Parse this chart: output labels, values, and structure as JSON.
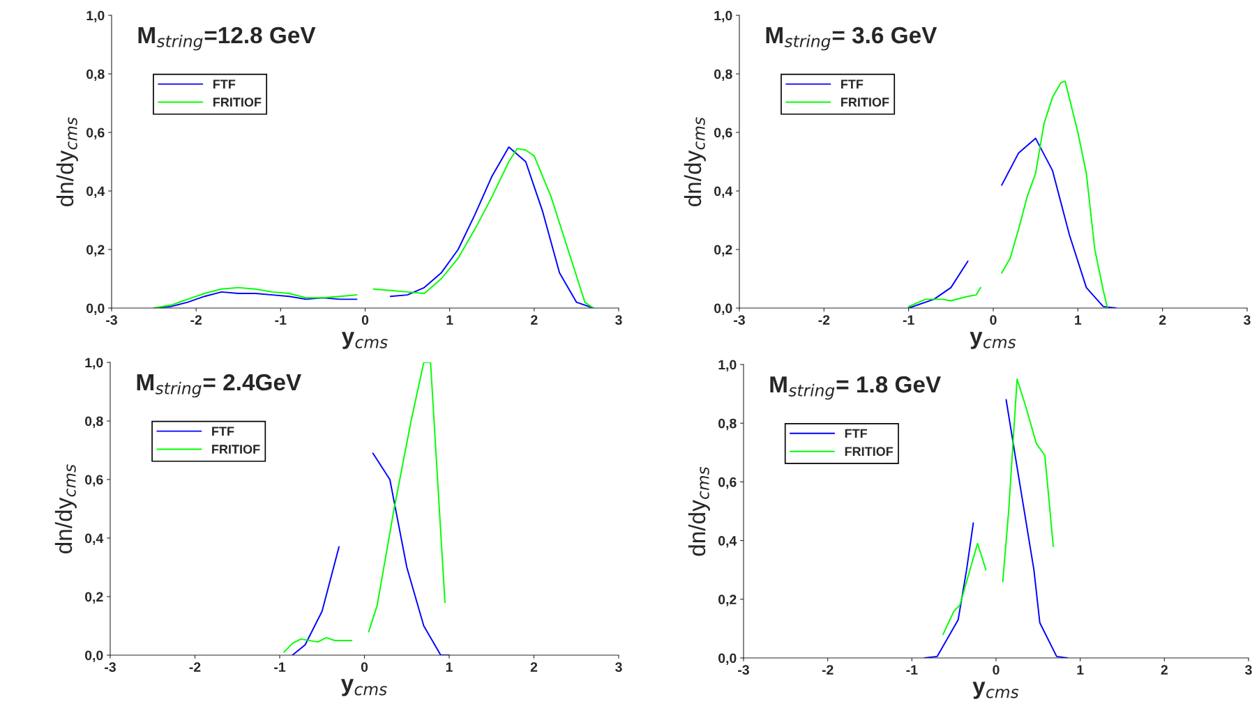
{
  "chart_data": [
    {
      "type": "line",
      "title": "M$_{string}$=12.8 GeV",
      "xlabel": "y$_{cms}$",
      "ylabel": "dn/dy$_{cms}$",
      "xlim": [
        -3,
        3
      ],
      "ylim": [
        0,
        1
      ],
      "xticks": [
        -3,
        -2,
        -1,
        0,
        1,
        2,
        3
      ],
      "yticks": [
        {
          "value": 0,
          "label": "0,0"
        },
        {
          "value": 0.2,
          "label": "0,2"
        },
        {
          "value": 0.4,
          "label": "0,4"
        },
        {
          "value": 0.6,
          "label": "0,6"
        },
        {
          "value": 0.8,
          "label": "0,8"
        },
        {
          "value": 1,
          "label": "1,0"
        }
      ],
      "grid": false,
      "legend": "top left",
      "series": [
        {
          "name": "FTF",
          "color": "#0000ff",
          "x": [
            -2.5,
            -2.3,
            -2.1,
            -1.9,
            -1.7,
            -1.5,
            -1.3,
            -1.1,
            -0.9,
            -0.7,
            -0.5,
            -0.3,
            -0.1,
            0.1,
            0.3,
            0.5,
            0.7,
            0.9,
            1.1,
            1.3,
            1.5,
            1.7,
            1.9,
            2.1,
            2.3,
            2.5,
            2.7
          ],
          "values": [
            0,
            0.005,
            0.02,
            0.04,
            0.055,
            0.05,
            0.05,
            0.045,
            0.04,
            0.03,
            0.035,
            0.03,
            0.03,
            null,
            0.04,
            0.045,
            0.07,
            0.12,
            0.2,
            0.32,
            0.45,
            0.55,
            0.5,
            0.33,
            0.12,
            0.02,
            0
          ]
        },
        {
          "name": "FRITIOF",
          "color": "#00ff00",
          "x": [
            -2.5,
            -2.3,
            -2.1,
            -1.9,
            -1.7,
            -1.5,
            -1.3,
            -1.1,
            -0.9,
            -0.7,
            -0.5,
            -0.3,
            -0.1,
            0,
            0.1,
            0.3,
            0.5,
            0.7,
            0.9,
            1.1,
            1.3,
            1.5,
            1.7,
            1.8,
            1.9,
            2.0,
            2.2,
            2.4,
            2.6,
            2.7
          ],
          "values": [
            0,
            0.01,
            0.03,
            0.05,
            0.065,
            0.07,
            0.065,
            0.055,
            0.05,
            0.035,
            0.035,
            0.04,
            0.045,
            null,
            0.065,
            0.06,
            0.055,
            0.05,
            0.1,
            0.17,
            0.27,
            0.38,
            0.5,
            0.545,
            0.54,
            0.52,
            0.38,
            0.2,
            0.02,
            0
          ]
        }
      ]
    },
    {
      "type": "line",
      "title": "M$_{string}$= 3.6 GeV",
      "xlabel": "y$_{cms}$",
      "ylabel": "dn/dy$_{cms}$",
      "xlim": [
        -3,
        3
      ],
      "ylim": [
        0,
        1
      ],
      "xticks": [
        -3,
        -2,
        -1,
        0,
        1,
        2,
        3
      ],
      "yticks": [
        {
          "value": 0,
          "label": "0,0"
        },
        {
          "value": 0.2,
          "label": "0,2"
        },
        {
          "value": 0.4,
          "label": "0,4"
        },
        {
          "value": 0.6,
          "label": "0,6"
        },
        {
          "value": 0.8,
          "label": "0,8"
        },
        {
          "value": 1,
          "label": "1,0"
        }
      ],
      "grid": false,
      "legend": "top left",
      "series": [
        {
          "name": "FTF",
          "color": "#0000ff",
          "x": [
            -1.0,
            -0.7,
            -0.5,
            -0.3,
            0,
            0.1,
            0.3,
            0.5,
            0.7,
            0.9,
            1.1,
            1.3,
            1.45
          ],
          "values": [
            0,
            0.03,
            0.07,
            0.16,
            null,
            0.42,
            0.53,
            0.58,
            0.47,
            0.25,
            0.07,
            0.005,
            0
          ]
        },
        {
          "name": "FRITIOF",
          "color": "#00ff00",
          "x": [
            -1.0,
            -0.8,
            -0.6,
            -0.5,
            -0.3,
            -0.2,
            -0.15,
            0,
            0.1,
            0.2,
            0.3,
            0.4,
            0.5,
            0.6,
            0.7,
            0.8,
            0.85,
            1.0,
            1.1,
            1.2,
            1.3,
            1.35
          ],
          "values": [
            0.005,
            0.03,
            0.03,
            0.025,
            0.04,
            0.045,
            0.07,
            null,
            0.12,
            0.17,
            0.27,
            0.38,
            0.46,
            0.63,
            0.72,
            0.77,
            0.775,
            0.6,
            0.46,
            0.2,
            0.06,
            0
          ]
        }
      ]
    },
    {
      "type": "line",
      "title": "M$_{string}$= 2.4GeV",
      "xlabel": "y$_{cms}$",
      "ylabel": "dn/dy$_{cms}$",
      "xlim": [
        -3,
        3
      ],
      "ylim": [
        0,
        1
      ],
      "xticks": [
        -3,
        -2,
        -1,
        0,
        1,
        2,
        3
      ],
      "yticks": [
        {
          "value": 0,
          "label": "0,0"
        },
        {
          "value": 0.2,
          "label": "0,2"
        },
        {
          "value": 0.4,
          "label": "0,4"
        },
        {
          "value": 0.6,
          "label": "0,6"
        },
        {
          "value": 0.8,
          "label": "0,8"
        },
        {
          "value": 1,
          "label": "1,0"
        }
      ],
      "grid": false,
      "legend": "top left",
      "series": [
        {
          "name": "FTF",
          "color": "#0000ff",
          "x": [
            -0.85,
            -0.7,
            -0.5,
            -0.3,
            0,
            0.1,
            0.3,
            0.5,
            0.7,
            0.9,
            1.0
          ],
          "values": [
            0,
            0.035,
            0.15,
            0.37,
            null,
            0.69,
            0.6,
            0.3,
            0.1,
            0,
            0
          ]
        },
        {
          "name": "FRITIOF",
          "color": "#00ff00",
          "x": [
            -0.95,
            -0.85,
            -0.75,
            -0.55,
            -0.45,
            -0.35,
            -0.15,
            0,
            0.05,
            0.15,
            0.35,
            0.55,
            0.7,
            0.78,
            0.95
          ],
          "values": [
            0.01,
            0.04,
            0.055,
            0.045,
            0.06,
            0.05,
            0.05,
            null,
            0.08,
            0.17,
            0.5,
            0.8,
            1.0,
            1.0,
            0.18
          ]
        }
      ]
    },
    {
      "type": "line",
      "title": "M$_{string}$= 1.8 GeV",
      "xlabel": "y$_{cms}$",
      "ylabel": "dn/dy$_{cms}$",
      "xlim": [
        -3,
        3
      ],
      "ylim": [
        0,
        1
      ],
      "xticks": [
        -3,
        -2,
        -1,
        0,
        1,
        2,
        3
      ],
      "yticks": [
        {
          "value": 0,
          "label": "0,0"
        },
        {
          "value": 0.2,
          "label": "0,2"
        },
        {
          "value": 0.4,
          "label": "0,4"
        },
        {
          "value": 0.6,
          "label": "0,6"
        },
        {
          "value": 0.8,
          "label": "0,8"
        },
        {
          "value": 1,
          "label": "1,0"
        }
      ],
      "grid": false,
      "legend": "top left",
      "series": [
        {
          "name": "FTF",
          "color": "#0000ff",
          "x": [
            -0.85,
            -0.7,
            -0.45,
            -0.35,
            -0.27,
            0,
            0.12,
            0.25,
            0.45,
            0.52,
            0.72,
            0.85
          ],
          "values": [
            0,
            0.005,
            0.13,
            0.3,
            0.46,
            null,
            0.88,
            0.65,
            0.3,
            0.12,
            0.005,
            0
          ]
        },
        {
          "name": "FRITIOF",
          "color": "#00ff00",
          "x": [
            -0.63,
            -0.5,
            -0.43,
            -0.22,
            -0.12,
            0,
            0.08,
            0.15,
            0.25,
            0.35,
            0.48,
            0.58,
            0.68
          ],
          "values": [
            0.08,
            0.16,
            0.18,
            0.39,
            0.3,
            null,
            0.26,
            0.5,
            0.95,
            0.86,
            0.73,
            0.69,
            0.38
          ]
        }
      ]
    }
  ]
}
